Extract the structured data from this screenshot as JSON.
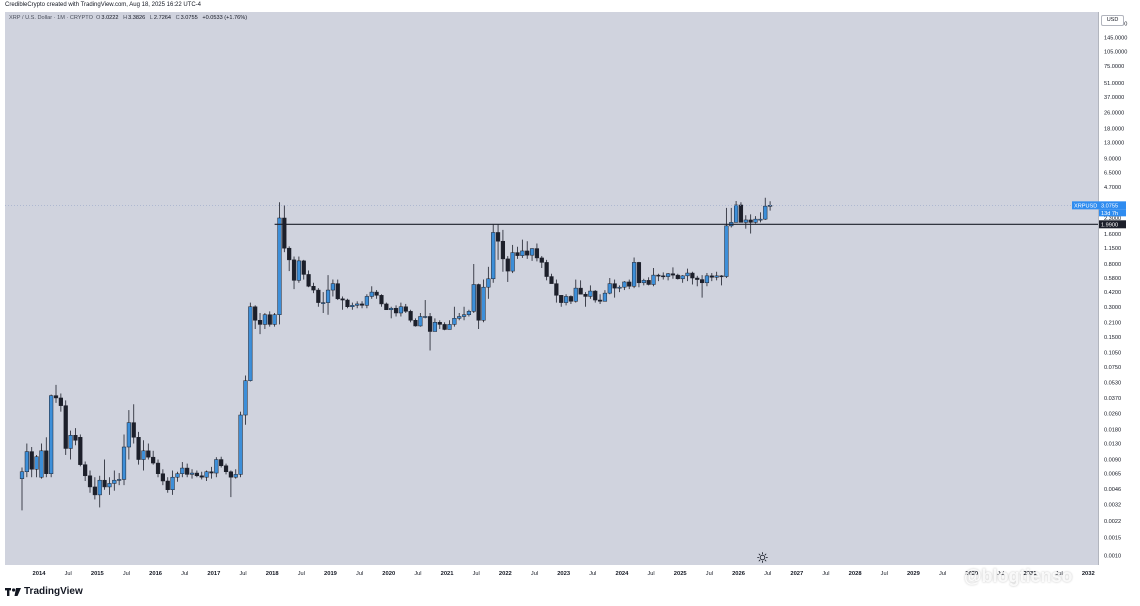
{
  "header": {
    "credit": "CredibleCrypto created with TradingView.com, Aug 18, 2025 16:22 UTC-4"
  },
  "legend": {
    "symbol": "XRP / U.S. Dollar · 1M · CRYPTO",
    "open_label": "O",
    "open": "3.0222",
    "high_label": "H",
    "high": "3.3826",
    "low_label": "L",
    "low": "2.7264",
    "close_label": "C",
    "close": "3.0755",
    "change": "+0.0533 (+1.76%)"
  },
  "price_axis": {
    "currency": "USD",
    "labels": [
      "200.0000",
      "145.0000",
      "105.0000",
      "75.0000",
      "51.0000",
      "37.0000",
      "26.0000",
      "18.0000",
      "13.0000",
      "9.0000",
      "6.5000",
      "4.7000",
      "2.3000",
      "1.6000",
      "1.1500",
      "0.8000",
      "0.5800",
      "0.4200",
      "0.3000",
      "0.2100",
      "0.1500",
      "0.1050",
      "0.0750",
      "0.0530",
      "0.0370",
      "0.0260",
      "0.0180",
      "0.0130",
      "0.0090",
      "0.0065",
      "0.0046",
      "0.0032",
      "0.0022",
      "0.0015",
      "0.0010"
    ],
    "symbol_tag": "XRPUSD",
    "price_tag": "3.0755",
    "countdown_tag": "13d 7h",
    "line_tag": "1.9900"
  },
  "time_axis": {
    "labels": [
      "2014",
      "Jul",
      "2015",
      "Jul",
      "2016",
      "Jul",
      "2017",
      "Jul",
      "2018",
      "Jul",
      "2019",
      "Jul",
      "2020",
      "Jul",
      "2021",
      "Jul",
      "2022",
      "Jul",
      "2023",
      "Jul",
      "2024",
      "Jul",
      "2025",
      "Jul",
      "2026",
      "Jul",
      "2027",
      "Jul",
      "2028",
      "Jul",
      "2029",
      "Jul",
      "2030",
      "Jul",
      "2031",
      "Jul",
      "2032"
    ]
  },
  "footer": {
    "brand": "TradingView",
    "watermark": "@blogtienso"
  },
  "colors": {
    "background": "#d0d3de",
    "up": "#3d8fd9",
    "down": "#1c1f2a",
    "level_line": "#1c1f2a",
    "price_tag": "#2f8cf0"
  },
  "icons": {
    "logo": "tradingview-logo-icon",
    "sun": "sun-icon"
  },
  "chart_data": {
    "type": "candlestick",
    "x": "monthly bars (first bar Sep 2013, last bar Aug 2025)",
    "scale": "log",
    "ylim": [
      0.0008,
      260
    ],
    "xrange": [
      "2013-06",
      "2032-03"
    ],
    "horizontal_level": 1.99,
    "last_close": 3.0755,
    "candles": [
      [
        0.0058,
        0.0075,
        0.0028,
        0.0068
      ],
      [
        0.0068,
        0.013,
        0.006,
        0.0108
      ],
      [
        0.0108,
        0.012,
        0.006,
        0.0072
      ],
      [
        0.0072,
        0.01,
        0.006,
        0.0096
      ],
      [
        0.006,
        0.013,
        0.0058,
        0.011
      ],
      [
        0.011,
        0.015,
        0.006,
        0.0065
      ],
      [
        0.0065,
        0.04,
        0.006,
        0.039
      ],
      [
        0.039,
        0.05,
        0.033,
        0.037
      ],
      [
        0.037,
        0.041,
        0.027,
        0.031
      ],
      [
        0.031,
        0.035,
        0.01,
        0.0116
      ],
      [
        0.0116,
        0.0175,
        0.009,
        0.0157
      ],
      [
        0.0157,
        0.0185,
        0.0125,
        0.014
      ],
      [
        0.015,
        0.016,
        0.0077,
        0.008
      ],
      [
        0.008,
        0.0086,
        0.0055,
        0.0062
      ],
      [
        0.0062,
        0.007,
        0.0042,
        0.0048
      ],
      [
        0.0048,
        0.006,
        0.0036,
        0.004
      ],
      [
        0.004,
        0.0062,
        0.003,
        0.0056
      ],
      [
        0.0056,
        0.009,
        0.0045,
        0.0048
      ],
      [
        0.0048,
        0.006,
        0.004,
        0.0052
      ],
      [
        0.0052,
        0.007,
        0.0044,
        0.0056
      ],
      [
        0.0056,
        0.0066,
        0.005,
        0.0057
      ],
      [
        0.0057,
        0.016,
        0.005,
        0.012
      ],
      [
        0.012,
        0.028,
        0.009,
        0.021
      ],
      [
        0.021,
        0.032,
        0.013,
        0.015
      ],
      [
        0.015,
        0.017,
        0.008,
        0.009
      ],
      [
        0.009,
        0.014,
        0.007,
        0.011
      ],
      [
        0.011,
        0.013,
        0.009,
        0.0095
      ],
      [
        0.0095,
        0.011,
        0.008,
        0.0083
      ],
      [
        0.0083,
        0.009,
        0.006,
        0.0065
      ],
      [
        0.0065,
        0.0072,
        0.005,
        0.0055
      ],
      [
        0.0055,
        0.006,
        0.0042,
        0.0045
      ],
      [
        0.0045,
        0.007,
        0.004,
        0.006
      ],
      [
        0.006,
        0.0068,
        0.0054,
        0.0065
      ],
      [
        0.0065,
        0.0085,
        0.006,
        0.0074
      ],
      [
        0.0074,
        0.0082,
        0.006,
        0.0064
      ],
      [
        0.0064,
        0.0072,
        0.0058,
        0.0066
      ],
      [
        0.0066,
        0.007,
        0.006,
        0.0062
      ],
      [
        0.0062,
        0.0068,
        0.0057,
        0.006
      ],
      [
        0.006,
        0.007,
        0.0055,
        0.0068
      ],
      [
        0.0068,
        0.0076,
        0.0058,
        0.0066
      ],
      [
        0.0066,
        0.0095,
        0.006,
        0.009
      ],
      [
        0.009,
        0.0096,
        0.0075,
        0.0078
      ],
      [
        0.0078,
        0.0082,
        0.0064,
        0.0068
      ],
      [
        0.0068,
        0.007,
        0.0038,
        0.006
      ],
      [
        0.006,
        0.0072,
        0.0058,
        0.0064
      ],
      [
        0.0064,
        0.027,
        0.006,
        0.025
      ],
      [
        0.025,
        0.062,
        0.02,
        0.055
      ],
      [
        0.055,
        0.33,
        0.054,
        0.3
      ],
      [
        0.3,
        0.31,
        0.18,
        0.22
      ],
      [
        0.22,
        0.26,
        0.16,
        0.2
      ],
      [
        0.2,
        0.26,
        0.18,
        0.25
      ],
      [
        0.25,
        0.27,
        0.19,
        0.2
      ],
      [
        0.2,
        0.26,
        0.19,
        0.25
      ],
      [
        0.25,
        3.3,
        0.2,
        2.3
      ],
      [
        2.3,
        3.1,
        1.05,
        1.15
      ],
      [
        1.15,
        1.2,
        0.68,
        0.88
      ],
      [
        0.88,
        0.95,
        0.45,
        0.55
      ],
      [
        0.55,
        0.95,
        0.52,
        0.86
      ],
      [
        0.86,
        0.88,
        0.56,
        0.63
      ],
      [
        0.63,
        0.69,
        0.47,
        0.48
      ],
      [
        0.48,
        0.52,
        0.41,
        0.44
      ],
      [
        0.44,
        0.46,
        0.3,
        0.33
      ],
      [
        0.33,
        0.42,
        0.26,
        0.33
      ],
      [
        0.33,
        0.62,
        0.25,
        0.44
      ],
      [
        0.44,
        0.56,
        0.38,
        0.51
      ],
      [
        0.51,
        0.56,
        0.35,
        0.36
      ],
      [
        0.36,
        0.38,
        0.28,
        0.35
      ],
      [
        0.35,
        0.36,
        0.29,
        0.3
      ],
      [
        0.3,
        0.33,
        0.28,
        0.31
      ],
      [
        0.31,
        0.34,
        0.29,
        0.32
      ],
      [
        0.32,
        0.34,
        0.29,
        0.31
      ],
      [
        0.31,
        0.4,
        0.29,
        0.38
      ],
      [
        0.38,
        0.48,
        0.36,
        0.42
      ],
      [
        0.42,
        0.44,
        0.36,
        0.39
      ],
      [
        0.39,
        0.4,
        0.3,
        0.32
      ],
      [
        0.32,
        0.33,
        0.28,
        0.28
      ],
      [
        0.28,
        0.3,
        0.23,
        0.29
      ],
      [
        0.29,
        0.31,
        0.24,
        0.26
      ],
      [
        0.26,
        0.33,
        0.24,
        0.3
      ],
      [
        0.3,
        0.32,
        0.26,
        0.27
      ],
      [
        0.27,
        0.28,
        0.21,
        0.22
      ],
      [
        0.22,
        0.23,
        0.19,
        0.193
      ],
      [
        0.193,
        0.26,
        0.19,
        0.24
      ],
      [
        0.24,
        0.35,
        0.23,
        0.24
      ],
      [
        0.24,
        0.26,
        0.11,
        0.17
      ],
      [
        0.17,
        0.23,
        0.17,
        0.21
      ],
      [
        0.21,
        0.22,
        0.18,
        0.2
      ],
      [
        0.2,
        0.21,
        0.175,
        0.178
      ],
      [
        0.178,
        0.22,
        0.178,
        0.2
      ],
      [
        0.2,
        0.3,
        0.19,
        0.23
      ],
      [
        0.23,
        0.26,
        0.22,
        0.24
      ],
      [
        0.24,
        0.3,
        0.22,
        0.25
      ],
      [
        0.25,
        0.28,
        0.24,
        0.27
      ],
      [
        0.27,
        0.8,
        0.26,
        0.5
      ],
      [
        0.5,
        0.51,
        0.18,
        0.22
      ],
      [
        0.22,
        0.56,
        0.21,
        0.47
      ],
      [
        0.47,
        0.75,
        0.36,
        0.57
      ],
      [
        0.57,
        1.98,
        0.52,
        1.65
      ],
      [
        1.65,
        1.98,
        0.88,
        1.35
      ],
      [
        1.35,
        1.75,
        0.67,
        0.9
      ],
      [
        0.9,
        0.96,
        0.53,
        0.68
      ],
      [
        0.68,
        1.24,
        0.65,
        1.04
      ],
      [
        1.04,
        1.19,
        0.9,
        0.97
      ],
      [
        0.97,
        1.4,
        0.92,
        1.08
      ],
      [
        1.08,
        1.35,
        0.9,
        0.98
      ],
      [
        0.98,
        1.15,
        0.86,
        1.14
      ],
      [
        1.14,
        1.28,
        0.85,
        0.92
      ],
      [
        0.92,
        0.96,
        0.73,
        0.83
      ],
      [
        0.83,
        0.88,
        0.55,
        0.6
      ],
      [
        0.6,
        0.64,
        0.52,
        0.51
      ],
      [
        0.51,
        0.56,
        0.33,
        0.39
      ],
      [
        0.39,
        0.39,
        0.3,
        0.33
      ],
      [
        0.33,
        0.4,
        0.31,
        0.38
      ],
      [
        0.38,
        0.39,
        0.32,
        0.34
      ],
      [
        0.34,
        0.56,
        0.33,
        0.46
      ],
      [
        0.46,
        0.55,
        0.4,
        0.4
      ],
      [
        0.4,
        0.42,
        0.3,
        0.38
      ],
      [
        0.38,
        0.49,
        0.36,
        0.43
      ],
      [
        0.43,
        0.44,
        0.33,
        0.35
      ],
      [
        0.35,
        0.4,
        0.32,
        0.34
      ],
      [
        0.34,
        0.44,
        0.34,
        0.41
      ],
      [
        0.41,
        0.58,
        0.4,
        0.51
      ],
      [
        0.51,
        0.56,
        0.37,
        0.46
      ],
      [
        0.46,
        0.49,
        0.42,
        0.47
      ],
      [
        0.47,
        0.54,
        0.44,
        0.53
      ],
      [
        0.53,
        0.56,
        0.45,
        0.48
      ],
      [
        0.48,
        0.93,
        0.46,
        0.83
      ],
      [
        0.83,
        0.84,
        0.47,
        0.52
      ],
      [
        0.52,
        0.57,
        0.49,
        0.55
      ],
      [
        0.55,
        0.59,
        0.49,
        0.5
      ],
      [
        0.5,
        0.73,
        0.48,
        0.62
      ],
      [
        0.62,
        0.64,
        0.54,
        0.61
      ],
      [
        0.61,
        0.66,
        0.56,
        0.6
      ],
      [
        0.6,
        0.65,
        0.55,
        0.64
      ],
      [
        0.64,
        0.74,
        0.57,
        0.62
      ],
      [
        0.62,
        0.64,
        0.56,
        0.57
      ],
      [
        0.57,
        0.62,
        0.52,
        0.61
      ],
      [
        0.61,
        0.72,
        0.54,
        0.65
      ],
      [
        0.65,
        0.67,
        0.5,
        0.58
      ],
      [
        0.58,
        0.61,
        0.48,
        0.56
      ],
      [
        0.56,
        0.62,
        0.37,
        0.52
      ],
      [
        0.52,
        0.65,
        0.48,
        0.61
      ],
      [
        0.61,
        0.65,
        0.54,
        0.59
      ],
      [
        0.59,
        0.67,
        0.55,
        0.61
      ],
      [
        0.61,
        0.62,
        0.49,
        0.6
      ],
      [
        0.6,
        2.9,
        0.58,
        1.92
      ],
      [
        1.92,
        2.9,
        1.85,
        2.08
      ],
      [
        2.08,
        3.4,
        2.07,
        3.1
      ],
      [
        3.1,
        3.3,
        2.1,
        2.08
      ],
      [
        2.08,
        2.45,
        1.8,
        2.2
      ],
      [
        2.2,
        2.5,
        1.61,
        2.08
      ],
      [
        2.08,
        2.4,
        2.03,
        2.24
      ],
      [
        2.24,
        2.62,
        2.08,
        2.24
      ],
      [
        2.24,
        3.66,
        2.2,
        3.02
      ],
      [
        3.0222,
        3.3826,
        2.7264,
        3.0755
      ]
    ]
  }
}
